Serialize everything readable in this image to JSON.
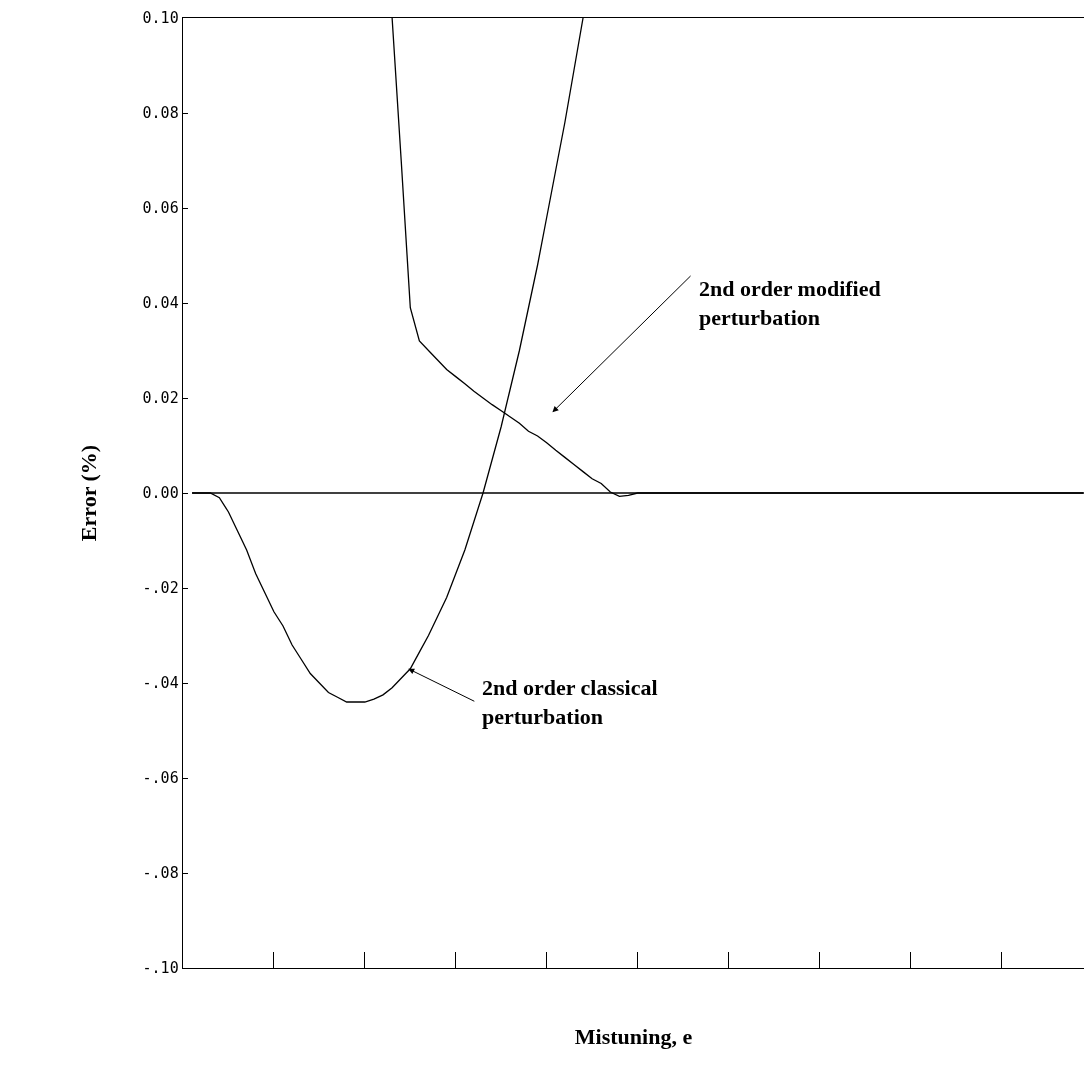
{
  "chart_data": {
    "type": "line",
    "xlabel": "Mistuning, e",
    "ylabel": "Error (%)",
    "categories": [
      null,
      null,
      null,
      null,
      null,
      null,
      null,
      null,
      null,
      null,
      null,
      null,
      null,
      null,
      null,
      null,
      null,
      null,
      null,
      null,
      null,
      null,
      null,
      null,
      null,
      null,
      null,
      null,
      null,
      null,
      null,
      null,
      null,
      null,
      null,
      null,
      null,
      null,
      null,
      null,
      null,
      null,
      null,
      null,
      null,
      null,
      null,
      null,
      null,
      null,
      null,
      null,
      null,
      null,
      null,
      null,
      null,
      null,
      null,
      null,
      null,
      null,
      null,
      null,
      null,
      null,
      null,
      null,
      null,
      null,
      null,
      null,
      null,
      null,
      null,
      null,
      null,
      null,
      null,
      null,
      null,
      null,
      null,
      null,
      null,
      null,
      null,
      null,
      null,
      null,
      null,
      null,
      null,
      null,
      null,
      null,
      null,
      null,
      null,
      null
    ],
    "series": [
      {
        "color": "#000000",
        "values": [
          null,
          0,
          0,
          0,
          -0.001,
          -0.004,
          -0.008,
          -0.012,
          -0.017,
          -0.021,
          -0.025,
          -0.028,
          -0.032,
          -0.035,
          -0.038,
          -0.04,
          -0.042,
          -0.043,
          -0.044,
          -0.044,
          -0.044,
          -0.0434,
          -0.0425,
          -0.041,
          -0.039,
          -0.037,
          -0.0335,
          -0.03,
          -0.026,
          -0.022,
          -0.017,
          -0.012,
          -0.006,
          0,
          0.007,
          0.014,
          0.022,
          0.03,
          0.039,
          0.048,
          0.058,
          0.068,
          0.078,
          0.089,
          0.1,
          null,
          null,
          null,
          null,
          null,
          null,
          null,
          null,
          null,
          null,
          null,
          null,
          null,
          null,
          null,
          null,
          null,
          null,
          null,
          null,
          null,
          null,
          null,
          null,
          null,
          null,
          null,
          null,
          null,
          null,
          null,
          null,
          null,
          null,
          null,
          null,
          null,
          null,
          null,
          null,
          null,
          null,
          null,
          null,
          null,
          null,
          null,
          null,
          null,
          null,
          null,
          null,
          null,
          null,
          null
        ]
      },
      {
        "color": "#000000",
        "values": [
          null,
          null,
          null,
          null,
          null,
          null,
          null,
          null,
          null,
          null,
          null,
          null,
          null,
          null,
          null,
          null,
          null,
          null,
          null,
          null,
          null,
          null,
          null,
          0.1,
          0.07,
          0.039,
          0.032,
          0.03,
          0.028,
          0.026,
          0.0245,
          0.023,
          0.0214,
          0.02,
          0.0186,
          0.0173,
          0.016,
          0.0147,
          0.013,
          0.012,
          0.0106,
          0.009,
          0.0075,
          0.006,
          0.0045,
          0.003,
          0.002,
          0.0002,
          -0.0007,
          -0.0005,
          0,
          0,
          0,
          0,
          0,
          0,
          0,
          0,
          0,
          0,
          0,
          0,
          0,
          0,
          0,
          0,
          0,
          0,
          0,
          0,
          0,
          0,
          0,
          0,
          0,
          0,
          0,
          0,
          0,
          0,
          0,
          0,
          0,
          0,
          0,
          0,
          0,
          0,
          0,
          0,
          0,
          0,
          0,
          0,
          0,
          0,
          0,
          0,
          0,
          0
        ]
      }
    ],
    "ylim": [
      -0.1,
      0.1
    ],
    "yticks": [
      {
        "value": 0.1,
        "label": "0.10"
      },
      {
        "value": 0.08,
        "label": "0.08"
      },
      {
        "value": 0.06,
        "label": "0.06"
      },
      {
        "value": 0.04,
        "label": "0.04"
      },
      {
        "value": 0.02,
        "label": "0.02"
      },
      {
        "value": 0,
        "label": "0.00"
      },
      {
        "value": -0.02,
        "label": "-.02"
      },
      {
        "value": -0.04,
        "label": "-.04"
      },
      {
        "value": -0.06,
        "label": "-.06"
      },
      {
        "value": -0.08,
        "label": "-.08"
      },
      {
        "value": -0.1,
        "label": "-.10"
      }
    ],
    "ref_lines": [
      {
        "axis": "y",
        "value": 0,
        "color": "#000000"
      }
    ],
    "tick_labels": "y",
    "grid": false,
    "marker": "none",
    "line_style": "solid",
    "annotations": [
      "2nd order modified\nperturbation",
      "2nd order classical\nperturbation"
    ]
  }
}
